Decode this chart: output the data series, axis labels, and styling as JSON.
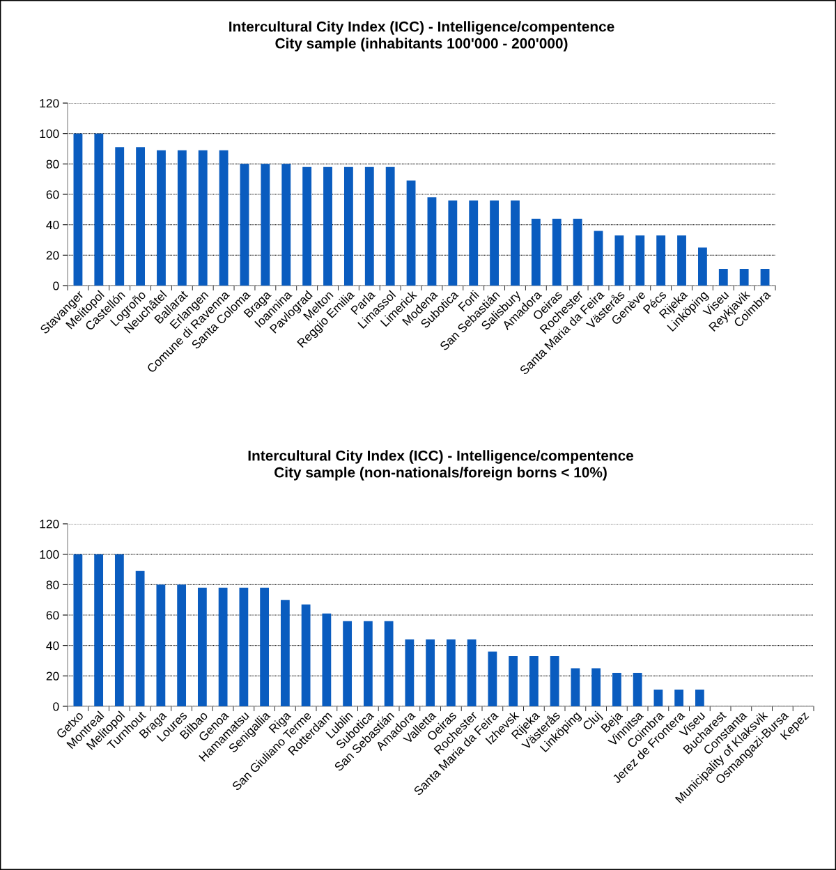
{
  "chart_data": [
    {
      "type": "bar",
      "title": "Intercultural City Index (ICC) - Intelligence/compentence\nCity sample (inhabitants 100'000 - 200'000)",
      "categories": [
        "Stavanger",
        "Melitopol",
        "Castellón",
        "Logroño",
        "Neuchâtel",
        "Ballarat",
        "Erlangen",
        "Comune di Ravenna",
        "Santa Coloma",
        "Braga",
        "Ioannina",
        "Pavlograd",
        "Melton",
        "Reggio Emilia",
        "Parla",
        "Limassol",
        "Limerick",
        "Modena",
        "Subotica",
        "Forli",
        "San Sebastián",
        "Salisbury",
        "Amadora",
        "Oeiras",
        "Rochester",
        "Santa Maria da Feira",
        "Västerås",
        "Genève",
        "Pécs",
        "Rijeka",
        "Linköping",
        "Viseu",
        "Reykjavik",
        "Coimbra"
      ],
      "values": [
        100,
        100,
        91,
        91,
        89,
        89,
        89,
        89,
        80,
        80,
        80,
        78,
        78,
        78,
        78,
        78,
        69,
        58,
        56,
        56,
        56,
        56,
        44,
        44,
        44,
        36,
        33,
        33,
        33,
        33,
        25,
        11,
        11,
        11
      ],
      "color": "#0a5cbf",
      "ylim": [
        0,
        120
      ],
      "yticks": [
        0,
        20,
        40,
        60,
        80,
        100,
        120
      ],
      "grid": "y"
    },
    {
      "type": "bar",
      "title": "Intercultural City Index (ICC) - Intelligence/compentence\nCity sample (non-nationals/foreign borns < 10%)",
      "categories": [
        "Getxo",
        "Montreal",
        "Melitopol",
        "Turnhout",
        "Braga",
        "Loures",
        "Bilbao",
        "Genoa",
        "Hamamatsu",
        "Senigallia",
        "Riga",
        "San Giuliano Terme",
        "Rotterdam",
        "Lublin",
        "Subotica",
        "San Sebastián",
        "Amadora",
        "Valletta",
        "Oeiras",
        "Rochester",
        "Santa Maria da Feira",
        "Izhevsk",
        "Rijeka",
        "Västerås",
        "Linköping",
        "Cluj",
        "Beja",
        "Vinnitsa",
        "Coimbra",
        "Jerez de Frontera",
        "Viseu",
        "Bucharest",
        "Constanta",
        "Municipality of Klaksvik",
        "Osmangazi-Bursa",
        "Kepez"
      ],
      "values": [
        100,
        100,
        100,
        89,
        80,
        80,
        78,
        78,
        78,
        78,
        70,
        67,
        61,
        56,
        56,
        56,
        44,
        44,
        44,
        44,
        36,
        33,
        33,
        33,
        25,
        25,
        22,
        22,
        11,
        11,
        11,
        0,
        0,
        0,
        0,
        0
      ],
      "color": "#0a5cbf",
      "ylim": [
        0,
        120
      ],
      "yticks": [
        0,
        20,
        40,
        60,
        80,
        100,
        120
      ],
      "grid": "y"
    }
  ]
}
